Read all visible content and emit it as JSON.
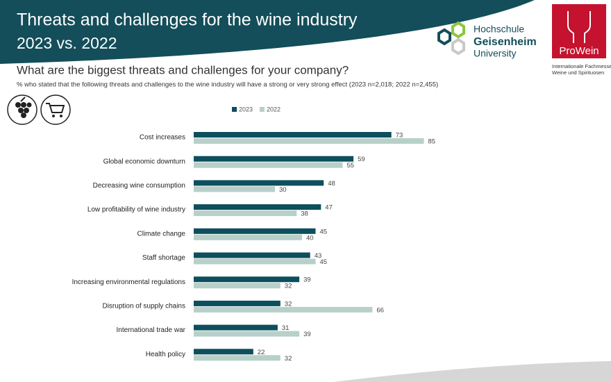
{
  "header": {
    "title_line1": "Threats and challenges for the wine industry",
    "title_line2": "2023 vs. 2022"
  },
  "logos": {
    "university_lines": [
      "Hochschule",
      "Geisenheim",
      "University"
    ],
    "fair": "ProWein",
    "fair_lines": [
      "Internationale Fachmesse",
      "Weine und Spirituosen"
    ]
  },
  "chart_data": {
    "type": "bar",
    "orientation": "horizontal",
    "title": "What are the biggest threats and challenges for your company?",
    "subtitle": "% who stated that the following threats and challenges to the wine industry will have a strong or very strong effect (2023 n=2,018; 2022 n=2,455)",
    "categories": [
      "Cost increases",
      "Global economic downturn",
      "Decreasing wine consumption",
      "Low profitability of wine industry",
      "Climate change",
      "Staff shortage",
      "Increasing environmental regulations",
      "Disruption of supply chains",
      "International trade war",
      "Health policy"
    ],
    "series": [
      {
        "name": "2023",
        "color": "#0d4f5c",
        "values": [
          73,
          59,
          48,
          47,
          45,
          43,
          39,
          32,
          31,
          22
        ]
      },
      {
        "name": "2022",
        "color": "#b7d0c9",
        "values": [
          85,
          55,
          30,
          38,
          40,
          45,
          32,
          66,
          39,
          32
        ]
      }
    ]
  }
}
